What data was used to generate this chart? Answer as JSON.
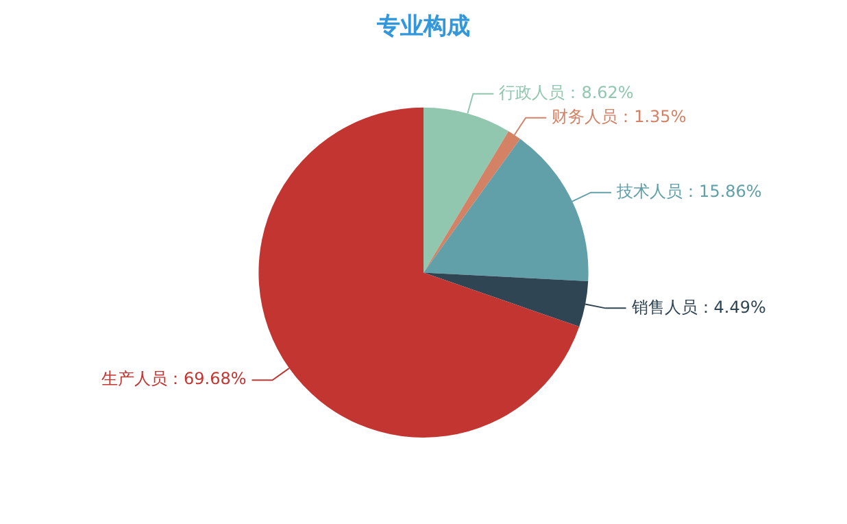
{
  "chart_data": {
    "type": "pie",
    "title": "专业构成",
    "categories": [
      "行政人员",
      "财务人员",
      "技术人员",
      "销售人员",
      "生产人员"
    ],
    "values": [
      8.62,
      1.35,
      15.86,
      4.49,
      69.68
    ],
    "colors": [
      "#91c7ae",
      "#d48265",
      "#61a0a8",
      "#2f4554",
      "#c23531"
    ],
    "value_labels": [
      "8.62%",
      "1.35%",
      "15.86%",
      "4.49%",
      "69.68%"
    ],
    "legend": false
  }
}
